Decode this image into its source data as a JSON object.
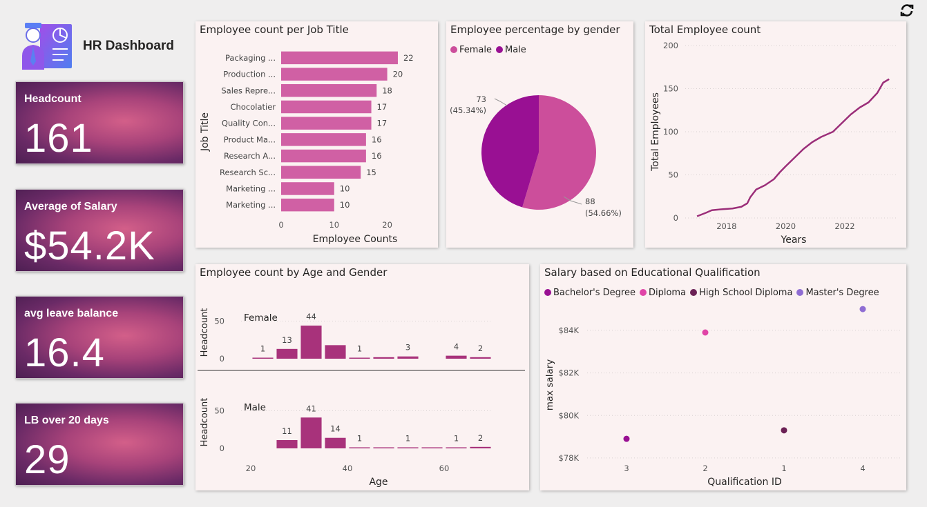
{
  "app": {
    "title": "HR Dashboard",
    "logo_icon": "hr-employee-chart-icon",
    "refresh_icon": "refresh-icon"
  },
  "kpis": [
    {
      "label": "Headcount",
      "value": "161"
    },
    {
      "label": "Average of Salary",
      "value": "$54.2K"
    },
    {
      "label": "avg leave balance",
      "value": "16.4"
    },
    {
      "label": "LB over 20 days",
      "value": "29"
    }
  ],
  "colors": {
    "female": "#cc4e9b",
    "male": "#991093",
    "bar": "#d060a4",
    "agebar": "#a8327b",
    "line": "#9b2e79",
    "bachelor": "#991093",
    "diploma": "#e044a7",
    "highschool": "#6b2155",
    "masters": "#8f6dd3"
  },
  "chart_data": [
    {
      "id": "job",
      "type": "bar",
      "orientation": "horizontal",
      "title": "Employee count per Job Title",
      "xlabel": "Employee Counts",
      "ylabel": "Job Title",
      "categories": [
        "Packaging ...",
        "Production ...",
        "Sales Repre...",
        "Chocolatier",
        "Quality Con...",
        "Product Ma...",
        "Research A...",
        "Research Sc...",
        "Marketing ...",
        "Marketing ..."
      ],
      "values": [
        22,
        20,
        18,
        17,
        17,
        16,
        16,
        15,
        10,
        10
      ],
      "xlim": [
        0,
        25
      ],
      "xticks": [
        0,
        10,
        20
      ]
    },
    {
      "id": "gender",
      "type": "pie",
      "title": "Employee percentage by gender",
      "legend": [
        "Female",
        "Male"
      ],
      "values": [
        88,
        73
      ],
      "labels": [
        {
          "count": "88",
          "pct": "(54.66%)"
        },
        {
          "count": "73",
          "pct": "(45.34%)"
        }
      ],
      "legend_position": "top-left"
    },
    {
      "id": "total",
      "type": "line",
      "title": "Total Employee count",
      "xlabel": "Years",
      "ylabel": "Total Employees",
      "ylim": [
        0,
        200
      ],
      "yticks": [
        0,
        50,
        100,
        150,
        200
      ],
      "xlim": [
        2016.6,
        2023.8
      ],
      "xticks": [
        2018,
        2020,
        2022
      ],
      "x": [
        2017.0,
        2017.3,
        2017.5,
        2017.8,
        2018.2,
        2018.5,
        2018.7,
        2018.8,
        2019.0,
        2019.3,
        2019.6,
        2019.8,
        2020.0,
        2020.3,
        2020.6,
        2020.9,
        2021.2,
        2021.6,
        2021.9,
        2022.2,
        2022.5,
        2022.8,
        2023.1,
        2023.3,
        2023.5
      ],
      "y": [
        2,
        6,
        9,
        10,
        11,
        13,
        17,
        24,
        33,
        38,
        45,
        53,
        60,
        70,
        80,
        88,
        94,
        100,
        110,
        120,
        128,
        134,
        145,
        157,
        161
      ]
    },
    {
      "id": "age",
      "type": "bar",
      "title": "Employee count by Age and Gender",
      "xlabel": "Age",
      "ylabel": "Headcount",
      "xticks": [
        20,
        40,
        60
      ],
      "xlim": [
        18,
        70
      ],
      "yticks": [
        0,
        50
      ],
      "ylim": [
        0,
        55
      ],
      "bins": [
        22.5,
        27.5,
        32.5,
        37.5,
        42.5,
        47.5,
        52.5,
        57.5,
        62.5,
        67.5
      ],
      "series": [
        {
          "name": "Female",
          "values": [
            1,
            13,
            44,
            18,
            1,
            2,
            3,
            0,
            4,
            2
          ],
          "labels": [
            "1",
            "13",
            "44",
            "",
            "1",
            "",
            "3",
            "",
            "4",
            "2"
          ]
        },
        {
          "name": "Male",
          "values": [
            0,
            11,
            41,
            14,
            1,
            1,
            1,
            1,
            1,
            2
          ],
          "labels": [
            "",
            "11",
            "41",
            "14",
            "1",
            "",
            "1",
            "",
            "1",
            "2"
          ]
        }
      ]
    },
    {
      "id": "salary",
      "type": "scatter",
      "title": "Salary based on Educational Qualification",
      "xlabel": "Qualification ID",
      "ylabel": "max salary",
      "legend": [
        "Bachelor's Degree",
        "Diploma",
        "High School Diploma",
        "Master's Degree"
      ],
      "categories": [
        "3",
        "2",
        "1",
        "4"
      ],
      "yticks": [
        "$78K",
        "$80K",
        "$82K",
        "$84K"
      ],
      "ytick_values": [
        78000,
        80000,
        82000,
        84000
      ],
      "ylim": [
        77900,
        85100
      ],
      "points": [
        {
          "category": "3",
          "value": 78900,
          "series": "Bachelor's Degree"
        },
        {
          "category": "2",
          "value": 83900,
          "series": "Diploma"
        },
        {
          "category": "1",
          "value": 79300,
          "series": "High School Diploma"
        },
        {
          "category": "4",
          "value": 85000,
          "series": "Master's Degree"
        }
      ]
    }
  ]
}
